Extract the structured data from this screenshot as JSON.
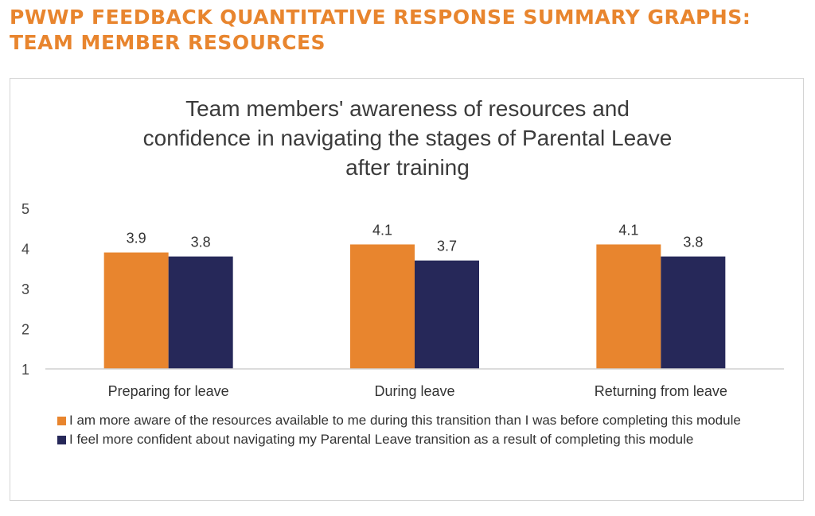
{
  "page": {
    "heading_line1": "PWWP FEEDBACK QUANTITATIVE RESPONSE SUMMARY GRAPHS:",
    "heading_line2": "TEAM MEMBER RESOURCES"
  },
  "chart_data": {
    "type": "bar",
    "title_lines": [
      "Team members' awareness of resources and",
      "confidence in navigating the stages of Parental Leave",
      "after training"
    ],
    "categories": [
      "Preparing for leave",
      "During leave",
      "Returning from leave"
    ],
    "series": [
      {
        "name": "I am more aware of the resources available to me during this transition than I was before completing this module",
        "color": "#e8852e",
        "values": [
          3.9,
          4.1,
          4.1
        ]
      },
      {
        "name": "I feel more confident about navigating my Parental Leave transition as a result of completing this module",
        "color": "#262859",
        "values": [
          3.8,
          3.7,
          3.8
        ]
      }
    ],
    "value_labels": [
      [
        "3.9",
        "4.1",
        "4.1"
      ],
      [
        "3.8",
        "3.7",
        "3.8"
      ]
    ],
    "y_ticks": [
      "1",
      "2",
      "3",
      "4",
      "5"
    ],
    "ylim": [
      1,
      5
    ],
    "xlabel": "",
    "ylabel": "",
    "grid": false,
    "legend_position": "bottom"
  }
}
